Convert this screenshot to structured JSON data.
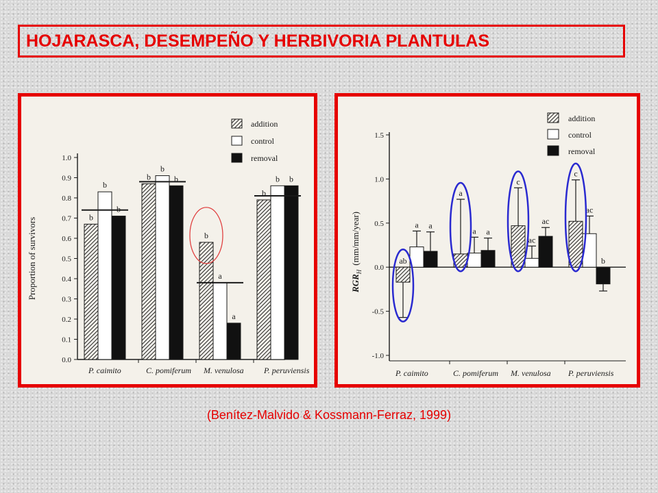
{
  "title": "HOJARASCA, DESEMPEÑO Y HERBIVORIA PLANTULAS",
  "citation": "(Benítez-Malvido & Kossmann-Ferraz, 1999)",
  "colors": {
    "accent": "#e60000",
    "highlight_left": "#e04040",
    "highlight_right": "#2a2ad0"
  },
  "chart_data": [
    {
      "type": "bar",
      "ylabel": "Proportion of survivors",
      "ylim": [
        0,
        1.0
      ],
      "yticks": [
        "0.0",
        "0.1",
        "0.2",
        "0.3",
        "0.4",
        "0.5",
        "0.6",
        "0.7",
        "0.8",
        "0.9",
        "1.0"
      ],
      "categories": [
        "P. caimito",
        "C. pomiferum",
        "M. venulosa",
        "P. peruviensis"
      ],
      "legend": [
        "addition",
        "control",
        "removal"
      ],
      "legend_position": "top-right",
      "series": [
        {
          "name": "addition",
          "values": [
            0.67,
            0.87,
            0.58,
            0.79
          ],
          "letters": [
            "b",
            "b",
            "b",
            "b"
          ]
        },
        {
          "name": "control",
          "values": [
            0.83,
            0.91,
            0.38,
            0.86
          ],
          "letters": [
            "b",
            "b",
            "a",
            "b"
          ]
        },
        {
          "name": "removal",
          "values": [
            0.71,
            0.86,
            0.18,
            0.86
          ],
          "letters": [
            "b",
            "b",
            "a",
            "b"
          ]
        }
      ],
      "group_lines": [
        0.74,
        0.88,
        0.38,
        0.81
      ],
      "highlighted": [
        {
          "category": "M. venulosa",
          "series": "addition"
        }
      ]
    },
    {
      "type": "bar",
      "ylabel": "RGR",
      "ylabel_sub": "H",
      "ylabel_units": "(mm/mm/year)",
      "ylim": [
        -1.0,
        1.5
      ],
      "yticks": [
        "-1.0",
        "-0.5",
        "0.0",
        "0.5",
        "1.0",
        "1.5"
      ],
      "categories": [
        "P. caimito",
        "C. pomiferum",
        "M. venulosa",
        "P. peruviensis"
      ],
      "legend": [
        "addition",
        "control",
        "removal"
      ],
      "legend_position": "top-right",
      "series": [
        {
          "name": "addition",
          "values": [
            -0.17,
            0.15,
            0.47,
            0.52
          ],
          "errors": [
            0.4,
            0.62,
            0.43,
            0.47
          ],
          "letters": [
            "ab",
            "a",
            "c",
            "c"
          ]
        },
        {
          "name": "control",
          "values": [
            0.23,
            0.16,
            0.1,
            0.38
          ],
          "errors": [
            0.18,
            0.18,
            0.14,
            0.2
          ],
          "letters": [
            "a",
            "a",
            "ac",
            "ac"
          ]
        },
        {
          "name": "removal",
          "values": [
            0.18,
            0.19,
            0.35,
            -0.19
          ],
          "errors": [
            0.22,
            0.14,
            0.1,
            0.08
          ],
          "letters": [
            "a",
            "a",
            "ac",
            "b"
          ]
        }
      ],
      "highlighted": [
        {
          "category": "P. caimito",
          "series": "addition"
        },
        {
          "category": "C. pomiferum",
          "series": "addition"
        },
        {
          "category": "M. venulosa",
          "series": "addition"
        },
        {
          "category": "P. peruviensis",
          "series": "addition"
        }
      ]
    }
  ]
}
